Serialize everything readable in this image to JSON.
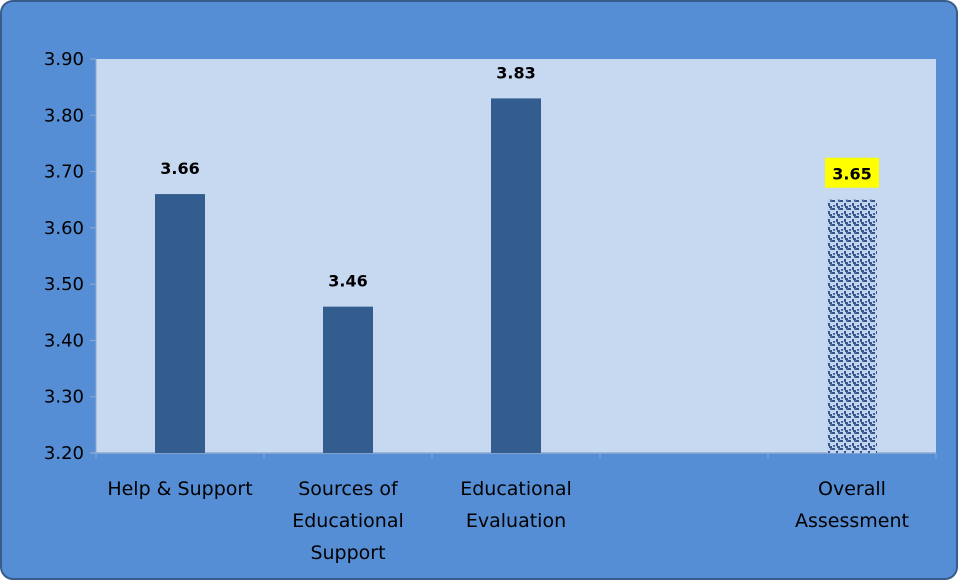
{
  "chart_data": {
    "type": "bar",
    "title": "",
    "xlabel": "",
    "ylabel": "",
    "ylim": [
      3.2,
      3.9
    ],
    "yticks": [
      "3.20",
      "3.30",
      "3.40",
      "3.50",
      "3.60",
      "3.70",
      "3.80",
      "3.90"
    ],
    "categories": [
      [
        "Help & Support"
      ],
      [
        "Sources of",
        "Educational",
        "Support"
      ],
      [
        "Educational",
        "Evaluation"
      ],
      [
        ""
      ],
      [
        "Overall",
        "Assessment"
      ]
    ],
    "values": [
      3.66,
      3.46,
      3.83,
      null,
      3.65
    ],
    "data_labels": [
      "3.66",
      "3.46",
      "3.83",
      "",
      "3.65"
    ],
    "highlighted_index": 4,
    "grid": false,
    "legend": "none",
    "colors": {
      "frame_background": "#558ED5",
      "frame_border": "#385D8A",
      "plot_background": "#C6D9F1",
      "bar": "#335D8F",
      "overall_bar_base": "#C3D4EE",
      "overall_bar_texture": "#35558C",
      "highlight_label": "#FFFF00"
    }
  }
}
